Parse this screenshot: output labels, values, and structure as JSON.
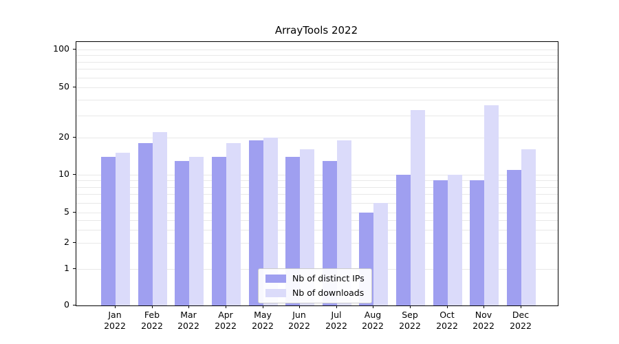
{
  "chart_data": {
    "type": "bar",
    "title": "ArrayTools 2022",
    "categories": [
      "Jan",
      "Feb",
      "Mar",
      "Apr",
      "May",
      "Jun",
      "Jul",
      "Aug",
      "Sep",
      "Oct",
      "Nov",
      "Dec"
    ],
    "year": "2022",
    "series": [
      {
        "name": "Nb of distinct IPs",
        "color": "#9f9ff0",
        "values": [
          14,
          18,
          13,
          14,
          19,
          14,
          13,
          5,
          10,
          9,
          9,
          11
        ]
      },
      {
        "name": "Nb of downloads",
        "color": "#dbdbfa",
        "values": [
          15,
          22,
          14,
          18,
          20,
          16,
          19,
          6,
          33,
          10,
          36,
          16
        ]
      }
    ],
    "y_ticks": [
      0,
      1,
      2,
      5,
      10,
      20,
      50,
      100
    ],
    "ylim": [
      0,
      100
    ],
    "y_scale": "log",
    "xlabel": "",
    "ylabel": "",
    "grid": "horizontal minor log gridlines",
    "legend_position": "lower center inside plot"
  }
}
